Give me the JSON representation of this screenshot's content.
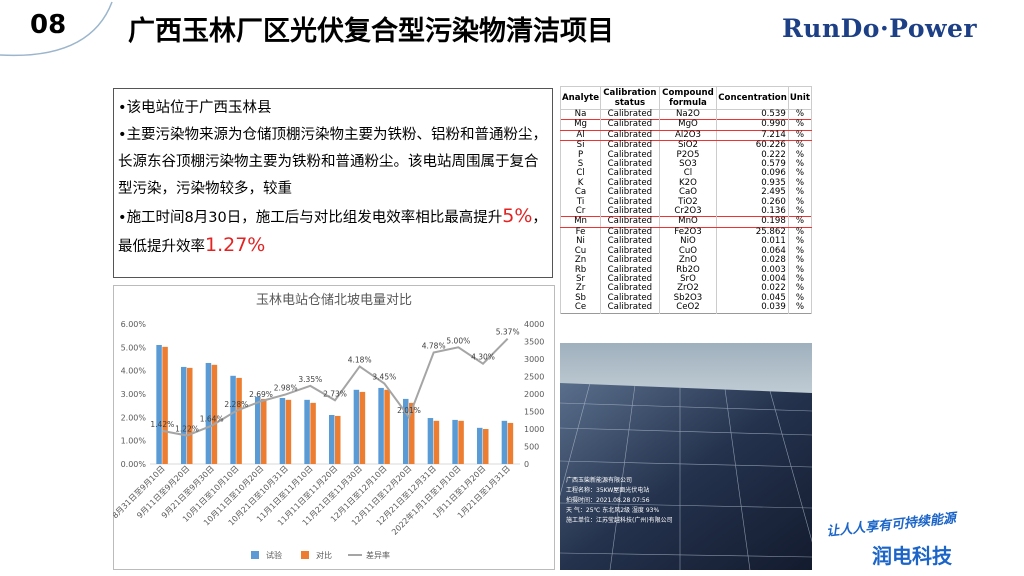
{
  "header": {
    "number": "08",
    "title": "广西玉林厂区光伏复合型污染物清洁项目",
    "logo": "RunDo·Power"
  },
  "bullets": [
    [
      "该电站位于广西玉林县"
    ],
    [
      "主要污染物来源为仓储顶棚污染物主要为铁粉、铝粉和普通粉尘，长源东谷顶棚污染物主要为铁粉和普通粉尘。该电站周围属于复合型污染，污染物较多，较重"
    ],
    [
      "施工时间8月30日，施工后与对比组发电效率相比最高提升",
      "5%",
      "，最低提升效率",
      "1.27%"
    ]
  ],
  "table": {
    "columns": [
      "Analyte",
      "Calibration status",
      "Compound formula",
      "Concentration",
      "Unit"
    ],
    "rows": [
      [
        "Na",
        "Calibrated",
        "Na2O",
        "0.539",
        "%"
      ],
      [
        "Mg",
        "Calibrated",
        "MgO",
        "0.990",
        "%"
      ],
      [
        "Al",
        "Calibrated",
        "Al2O3",
        "7.214",
        "%"
      ],
      [
        "Si",
        "Calibrated",
        "SiO2",
        "60.226",
        "%"
      ],
      [
        "P",
        "Calibrated",
        "P2O5",
        "0.222",
        "%"
      ],
      [
        "S",
        "Calibrated",
        "SO3",
        "0.579",
        "%"
      ],
      [
        "Cl",
        "Calibrated",
        "Cl",
        "0.096",
        "%"
      ],
      [
        "K",
        "Calibrated",
        "K2O",
        "0.935",
        "%"
      ],
      [
        "Ca",
        "Calibrated",
        "CaO",
        "2.495",
        "%"
      ],
      [
        "Ti",
        "Calibrated",
        "TiO2",
        "0.260",
        "%"
      ],
      [
        "Cr",
        "Calibrated",
        "Cr2O3",
        "0.136",
        "%"
      ],
      [
        "Mn",
        "Calibrated",
        "MnO",
        "0.198",
        "%"
      ],
      [
        "Fe",
        "Calibrated",
        "Fe2O3",
        "25.862",
        "%"
      ],
      [
        "Ni",
        "Calibrated",
        "NiO",
        "0.011",
        "%"
      ],
      [
        "Cu",
        "Calibrated",
        "CuO",
        "0.064",
        "%"
      ],
      [
        "Zn",
        "Calibrated",
        "ZnO",
        "0.028",
        "%"
      ],
      [
        "Rb",
        "Calibrated",
        "Rb2O",
        "0.003",
        "%"
      ],
      [
        "Sr",
        "Calibrated",
        "SrO",
        "0.004",
        "%"
      ],
      [
        "Zr",
        "Calibrated",
        "ZrO2",
        "0.022",
        "%"
      ],
      [
        "Sb",
        "Calibrated",
        "Sb2O3",
        "0.045",
        "%"
      ],
      [
        "Ce",
        "Calibrated",
        "CeO2",
        "0.039",
        "%"
      ]
    ]
  },
  "photo": {
    "caption": [
      "广西玉柴新能源有限公司",
      "工程名称：35KW屋面光伏电站",
      "拍摄时间：2021.08.28 07:56",
      "天  气：25℃ 东北风2级 湿度 93%",
      "施工单位：江苏莹越科技(广州)有限公司"
    ]
  },
  "slogan": "让人人享有可持续能源",
  "brand": "润电科技",
  "chart_data": {
    "type": "bar",
    "title": "玉林电站仓储北坡电量对比",
    "categories": [
      "8月31日至9月10日",
      "9月11日至9月20日",
      "9月21日至9月30日",
      "10月1日至10月10日",
      "10月11日至10月20日",
      "10月21日至10月31日",
      "11月1日至11月10日",
      "11月11日至11月20日",
      "11月21日至11月30日",
      "12月1日至12月10日",
      "12月11日至12月20日",
      "12月21日至12月31日",
      "2022年1月1日至1月10日",
      "1月11日至1月20日",
      "1月21日至1月31日"
    ],
    "series": [
      {
        "name": "试验",
        "color": "#5b9bd5",
        "values": [
          5.1,
          4.16,
          4.33,
          3.78,
          2.88,
          2.83,
          2.75,
          2.1,
          3.18,
          3.26,
          2.79,
          1.97,
          1.89,
          1.55,
          1.85
        ]
      },
      {
        "name": "对比",
        "color": "#ed7d31",
        "values": [
          5.02,
          4.12,
          4.25,
          3.69,
          2.79,
          2.75,
          2.62,
          2.06,
          3.09,
          3.18,
          2.62,
          1.85,
          1.85,
          1.5,
          1.76
        ]
      },
      {
        "name": "差异率",
        "type": "line",
        "color": "#a5a5a5",
        "values": [
          1.42,
          1.22,
          1.64,
          2.28,
          2.69,
          2.98,
          3.35,
          2.73,
          4.18,
          3.45,
          2.01,
          4.78,
          5.0,
          4.3,
          5.37
        ],
        "value_labels": [
          "1.42%",
          "1.22%",
          "1.64%",
          "2.28%",
          "2.69%",
          "2.98%",
          "3.35%",
          "2.73%",
          "4.18%",
          "3.45%",
          "2.01%",
          "4.78%",
          "5.00%",
          "4.30%",
          "5.37%"
        ]
      }
    ],
    "ylim": [
      0,
      6
    ],
    "yticks": [
      {
        "value": 0,
        "label": "0.00%"
      },
      {
        "value": 1,
        "label": "1.00%"
      },
      {
        "value": 2,
        "label": "2.00%"
      },
      {
        "value": 3,
        "label": "3.00%"
      },
      {
        "value": 4,
        "label": "4.00%"
      },
      {
        "value": 5,
        "label": "5.00%"
      },
      {
        "value": 6,
        "label": "6.00%"
      }
    ],
    "y2lim": [
      0,
      4000
    ],
    "y2ticks": [
      0,
      500,
      1000,
      1500,
      2000,
      2500,
      3000,
      3500,
      4000
    ],
    "legend": "bottom"
  }
}
